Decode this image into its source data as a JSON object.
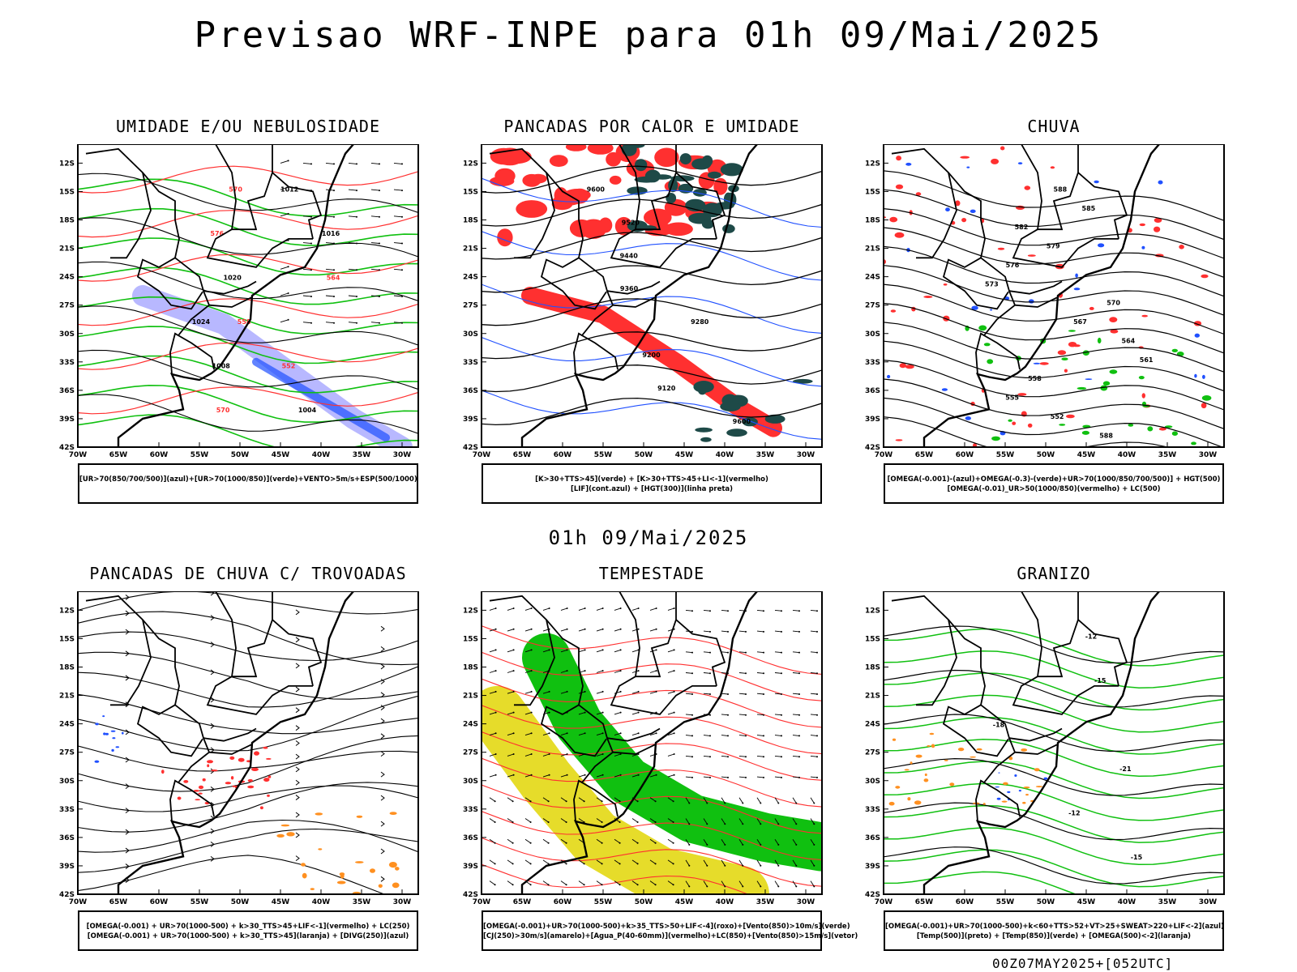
{
  "title": "Previsao WRF-INPE  para 01h 09/Mai/2025",
  "subtitle": "01h 09/Mai/2025",
  "run_label": "00Z07MAY2025+[052UTC]",
  "colors": {
    "green": "#10c010",
    "red": "#ff3030",
    "blue": "#2050ff",
    "lavender": "#b0b0ff",
    "darkteal": "#1e4a48",
    "yellow": "#e6dc2a",
    "orange": "#ff9020",
    "black": "#000000"
  },
  "chart_data": [
    {
      "type": "map",
      "title": "UMIDADE E/OU NEBULOSIDADE",
      "legend": [
        "[UR>70(850/700/500)](azul)+[UR>70(1000/850)](verde)+VENTO>5m/s+ESP(500/1000)"
      ],
      "x_ticks": [
        "70W",
        "65W",
        "60W",
        "55W",
        "50W",
        "45W",
        "40W",
        "35W",
        "30W"
      ],
      "y_ticks": [
        "12S",
        "15S",
        "18S",
        "21S",
        "24S",
        "27S",
        "30S",
        "33S",
        "36S",
        "39S",
        "42S"
      ],
      "contour_labels": [
        "1012",
        "1016",
        "1020",
        "1024",
        "1008",
        "1004",
        "570",
        "576",
        "564",
        "558",
        "552"
      ]
    },
    {
      "type": "map",
      "title": "PANCADAS POR CALOR E UMIDADE",
      "legend": [
        "[K>30+TTS>45](verde) + [K>30+TTS>45+LI<-1](vermelho)",
        "[LIF](cont.azul) + [HGT(300)](linha preta)"
      ],
      "x_ticks": [
        "70W",
        "65W",
        "60W",
        "55W",
        "50W",
        "45W",
        "40W",
        "35W",
        "30W"
      ],
      "y_ticks": [
        "12S",
        "15S",
        "18S",
        "21S",
        "24S",
        "27S",
        "30S",
        "33S",
        "36S",
        "39S",
        "42S"
      ],
      "contour_labels": [
        "9600",
        "9520",
        "9440",
        "9360",
        "9280",
        "9200",
        "9120"
      ]
    },
    {
      "type": "map",
      "title": "CHUVA",
      "legend": [
        "[OMEGA(-0.001)-(azul)+OMEGA(-0.3)-(verde)+UR>70(1000/850/700/500)] + HGT(500)",
        "[OMEGA(-0.01)_UR>50(1000/850)(vermelho) + LC(500)"
      ],
      "x_ticks": [
        "70W",
        "65W",
        "60W",
        "55W",
        "50W",
        "45W",
        "40W",
        "35W",
        "30W"
      ],
      "y_ticks": [
        "12S",
        "15S",
        "18S",
        "21S",
        "24S",
        "27S",
        "30S",
        "33S",
        "36S",
        "39S",
        "42S"
      ],
      "contour_labels": [
        "588",
        "585",
        "582",
        "579",
        "576",
        "573",
        "570",
        "567",
        "564",
        "561",
        "558",
        "555",
        "552"
      ]
    },
    {
      "type": "map",
      "title": "PANCADAS DE CHUVA C/ TROVOADAS",
      "legend": [
        "[OMEGA(-0.001) + UR>70(1000-500) + k>30_TTS>45+LIF<-1](vermelho) + LC(250)",
        "[OMEGA(-0.001) + UR>70(1000-500) + k>30_TTS>45](laranja) + [DIVG(250)](azul)"
      ],
      "x_ticks": [
        "70W",
        "65W",
        "60W",
        "55W",
        "50W",
        "45W",
        "40W",
        "35W",
        "30W"
      ],
      "y_ticks": [
        "12S",
        "15S",
        "18S",
        "21S",
        "24S",
        "27S",
        "30S",
        "33S",
        "36S",
        "39S",
        "42S"
      ],
      "contour_labels": []
    },
    {
      "type": "map",
      "title": "TEMPESTADE",
      "legend": [
        "[OMEGA(-0.001)+UR>70(1000-500)+k>35_TTS>50+LIF<-4](roxo)+[Vento(850)>10m/s](verde)",
        "[CJ(250)>30m/s](amarelo)+[Agua_P(40-60mm)](vermelho)+LC(850)+[Vento(850)>15m/s](vetor)"
      ],
      "x_ticks": [
        "70W",
        "65W",
        "60W",
        "55W",
        "50W",
        "45W",
        "40W",
        "35W",
        "30W"
      ],
      "y_ticks": [
        "12S",
        "15S",
        "18S",
        "21S",
        "24S",
        "27S",
        "30S",
        "33S",
        "36S",
        "39S",
        "42S"
      ],
      "contour_labels": []
    },
    {
      "type": "map",
      "title": "GRANIZO",
      "legend": [
        "[OMEGA(-0.001)+UR>70(1000-500)+k<60+TTS>52+VT>25+SWEAT>220+LIF<-2](azul)",
        "[Temp(500)](preto) + [Temp(850)](verde) + [OMEGA(500)<-2](laranja)"
      ],
      "x_ticks": [
        "70W",
        "65W",
        "60W",
        "55W",
        "50W",
        "45W",
        "40W",
        "35W",
        "30W"
      ],
      "y_ticks": [
        "12S",
        "15S",
        "18S",
        "21S",
        "24S",
        "27S",
        "30S",
        "33S",
        "36S",
        "39S",
        "42S"
      ],
      "contour_labels": [
        "-12",
        "-15",
        "-18",
        "-21"
      ]
    }
  ]
}
